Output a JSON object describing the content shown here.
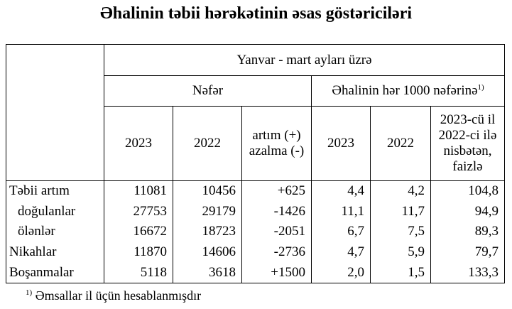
{
  "title": "Əhalinin təbii hərəkətinin əsas göstəriciləri",
  "header": {
    "period": "Yanvar - mart ayları üzrə",
    "group_persons": "Nəfər",
    "group_per1000": "Əhalinin hər 1000 nəfərinə",
    "footnote_mark": "1)",
    "columns": [
      "2023",
      "2022",
      "artım (+) azalma (-)",
      "2023",
      "2022",
      "2023-cü il 2022-ci ilə nisbətən, faizlə"
    ]
  },
  "rows": [
    {
      "label": "Təbii artım",
      "values": [
        "11081",
        "10456",
        "+625",
        "4,4",
        "4,2",
        "104,8"
      ]
    },
    {
      "label": "doğulanlar",
      "values": [
        "27753",
        "29179",
        "-1426",
        "11,1",
        "11,7",
        "94,9"
      ]
    },
    {
      "label": "ölənlər",
      "values": [
        "16672",
        "18723",
        "-2051",
        "6,7",
        "7,5",
        "89,3"
      ]
    },
    {
      "label": "Nikahlar",
      "values": [
        "11870",
        "14606",
        "-2736",
        "4,7",
        "5,9",
        "79,7"
      ]
    },
    {
      "label": "Boşanmalar",
      "values": [
        "5118",
        "3618",
        "+1500",
        "2,0",
        "1,5",
        "133,3"
      ]
    }
  ],
  "footnote": {
    "mark": "1)",
    "text": "Əmsallar il üçün hesablanmışdır"
  }
}
